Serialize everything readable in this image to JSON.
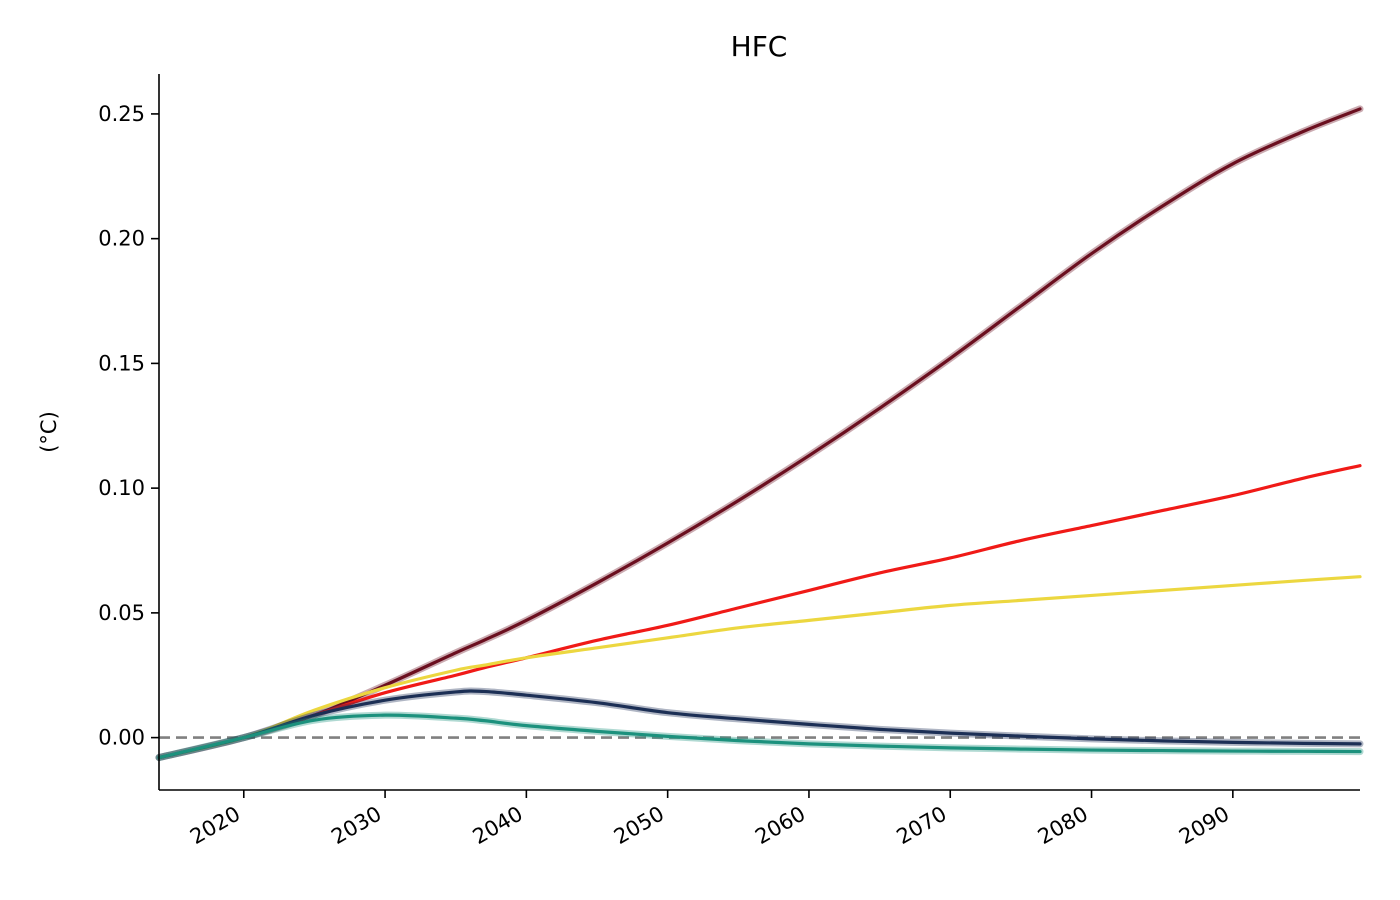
{
  "chart_data": {
    "type": "line",
    "title": "HFC",
    "xlabel": "",
    "ylabel": "($^\\circ$C)",
    "ylabel_display": "(°C)",
    "xlim": [
      2014,
      2099
    ],
    "ylim": [
      -0.021,
      0.266
    ],
    "xticks": [
      2020,
      2030,
      2040,
      2050,
      2060,
      2070,
      2080,
      2090
    ],
    "xtick_labels": [
      "2020",
      "2030",
      "2040",
      "2050",
      "2060",
      "2070",
      "2080",
      "2090"
    ],
    "yticks": [
      0.0,
      0.05,
      0.1,
      0.15,
      0.2,
      0.25
    ],
    "ytick_labels": [
      "0.00",
      "0.05",
      "0.10",
      "0.15",
      "0.20",
      "0.25"
    ],
    "grid": false,
    "reference_line": {
      "y": 0.0,
      "style": "dashed",
      "color": "#808080"
    },
    "x": [
      2014,
      2020,
      2025,
      2030,
      2035,
      2037,
      2040,
      2045,
      2050,
      2055,
      2060,
      2065,
      2070,
      2075,
      2080,
      2085,
      2090,
      2095,
      2099
    ],
    "series": [
      {
        "color": "#6b0f1f",
        "band": true,
        "values": [
          -0.008,
          0.0,
          0.009,
          0.021,
          0.034,
          0.039,
          0.047,
          0.062,
          0.078,
          0.095,
          0.113,
          0.132,
          0.152,
          0.173,
          0.194,
          0.213,
          0.23,
          0.243,
          0.252
        ]
      },
      {
        "color": "#f01a17",
        "band": false,
        "values": [
          -0.008,
          0.0,
          0.009,
          0.018,
          0.025,
          0.028,
          0.032,
          0.039,
          0.045,
          0.052,
          0.059,
          0.066,
          0.072,
          0.079,
          0.085,
          0.091,
          0.097,
          0.104,
          0.109
        ]
      },
      {
        "color": "#ecd740",
        "band": false,
        "values": [
          -0.008,
          0.0,
          0.011,
          0.02,
          0.027,
          0.029,
          0.032,
          0.036,
          0.04,
          0.044,
          0.047,
          0.05,
          0.053,
          0.055,
          0.057,
          0.059,
          0.061,
          0.063,
          0.0645
        ]
      },
      {
        "color": "#1c2f55",
        "band": true,
        "values": [
          -0.008,
          0.0,
          0.009,
          0.015,
          0.0183,
          0.0185,
          0.017,
          0.014,
          0.01,
          0.0075,
          0.0053,
          0.0033,
          0.0018,
          0.0006,
          -0.0005,
          -0.0013,
          -0.0019,
          -0.0023,
          -0.0025
        ]
      },
      {
        "color": "#1c917d",
        "band": true,
        "values": [
          -0.008,
          0.0,
          0.007,
          0.009,
          0.0078,
          0.0068,
          0.0048,
          0.0025,
          0.0005,
          -0.0012,
          -0.0025,
          -0.0034,
          -0.0041,
          -0.0046,
          -0.005,
          -0.0052,
          -0.0054,
          -0.0055,
          -0.0056
        ]
      }
    ]
  }
}
